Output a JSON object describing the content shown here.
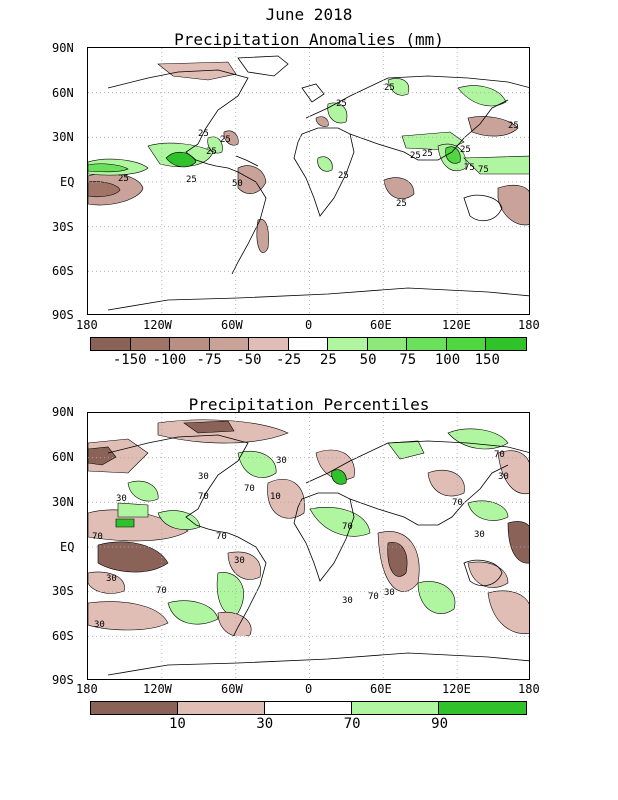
{
  "title": "June 2018",
  "map1": {
    "title": "Precipitation Anomalies (mm)",
    "lat_labels": [
      "90N",
      "60N",
      "30N",
      "EQ",
      "30S",
      "60S",
      "90S"
    ],
    "lon_labels": [
      "180",
      "120W",
      "60W",
      "0",
      "60E",
      "120E",
      "180"
    ],
    "contour_labels": [
      "25",
      "25",
      "25",
      "25",
      "25",
      "25",
      "25",
      "25",
      "50",
      "25",
      "25",
      "75",
      "25",
      "75",
      "25",
      "25"
    ],
    "colorbar": {
      "colors": [
        "#8b6257",
        "#a17468",
        "#b98f84",
        "#c9a299",
        "#e0bdb5",
        "#ffffff",
        "#b0f5a0",
        "#8ee87a",
        "#6be05c",
        "#4fd640",
        "#2fc22a"
      ],
      "labels": [
        "-150",
        "-100",
        "-75",
        "-50",
        "-25",
        "25",
        "50",
        "75",
        "100",
        "150"
      ]
    }
  },
  "map2": {
    "title": "Precipitation Percentiles",
    "lat_labels": [
      "90N",
      "60N",
      "30N",
      "EQ",
      "30S",
      "60S",
      "90S"
    ],
    "lon_labels": [
      "180",
      "120W",
      "60W",
      "0",
      "60E",
      "120E",
      "180"
    ],
    "contour_labels": [
      "30",
      "70",
      "30",
      "10",
      "70",
      "30",
      "70",
      "30",
      "70",
      "30",
      "70",
      "30",
      "70",
      "30",
      "70",
      "30",
      "70",
      "30",
      "70",
      "30"
    ],
    "colorbar": {
      "colors": [
        "#8b6257",
        "#e0bdb5",
        "#ffffff",
        "#b0f5a0",
        "#2fc22a"
      ],
      "labels": [
        "10",
        "30",
        "70",
        "90"
      ]
    }
  }
}
